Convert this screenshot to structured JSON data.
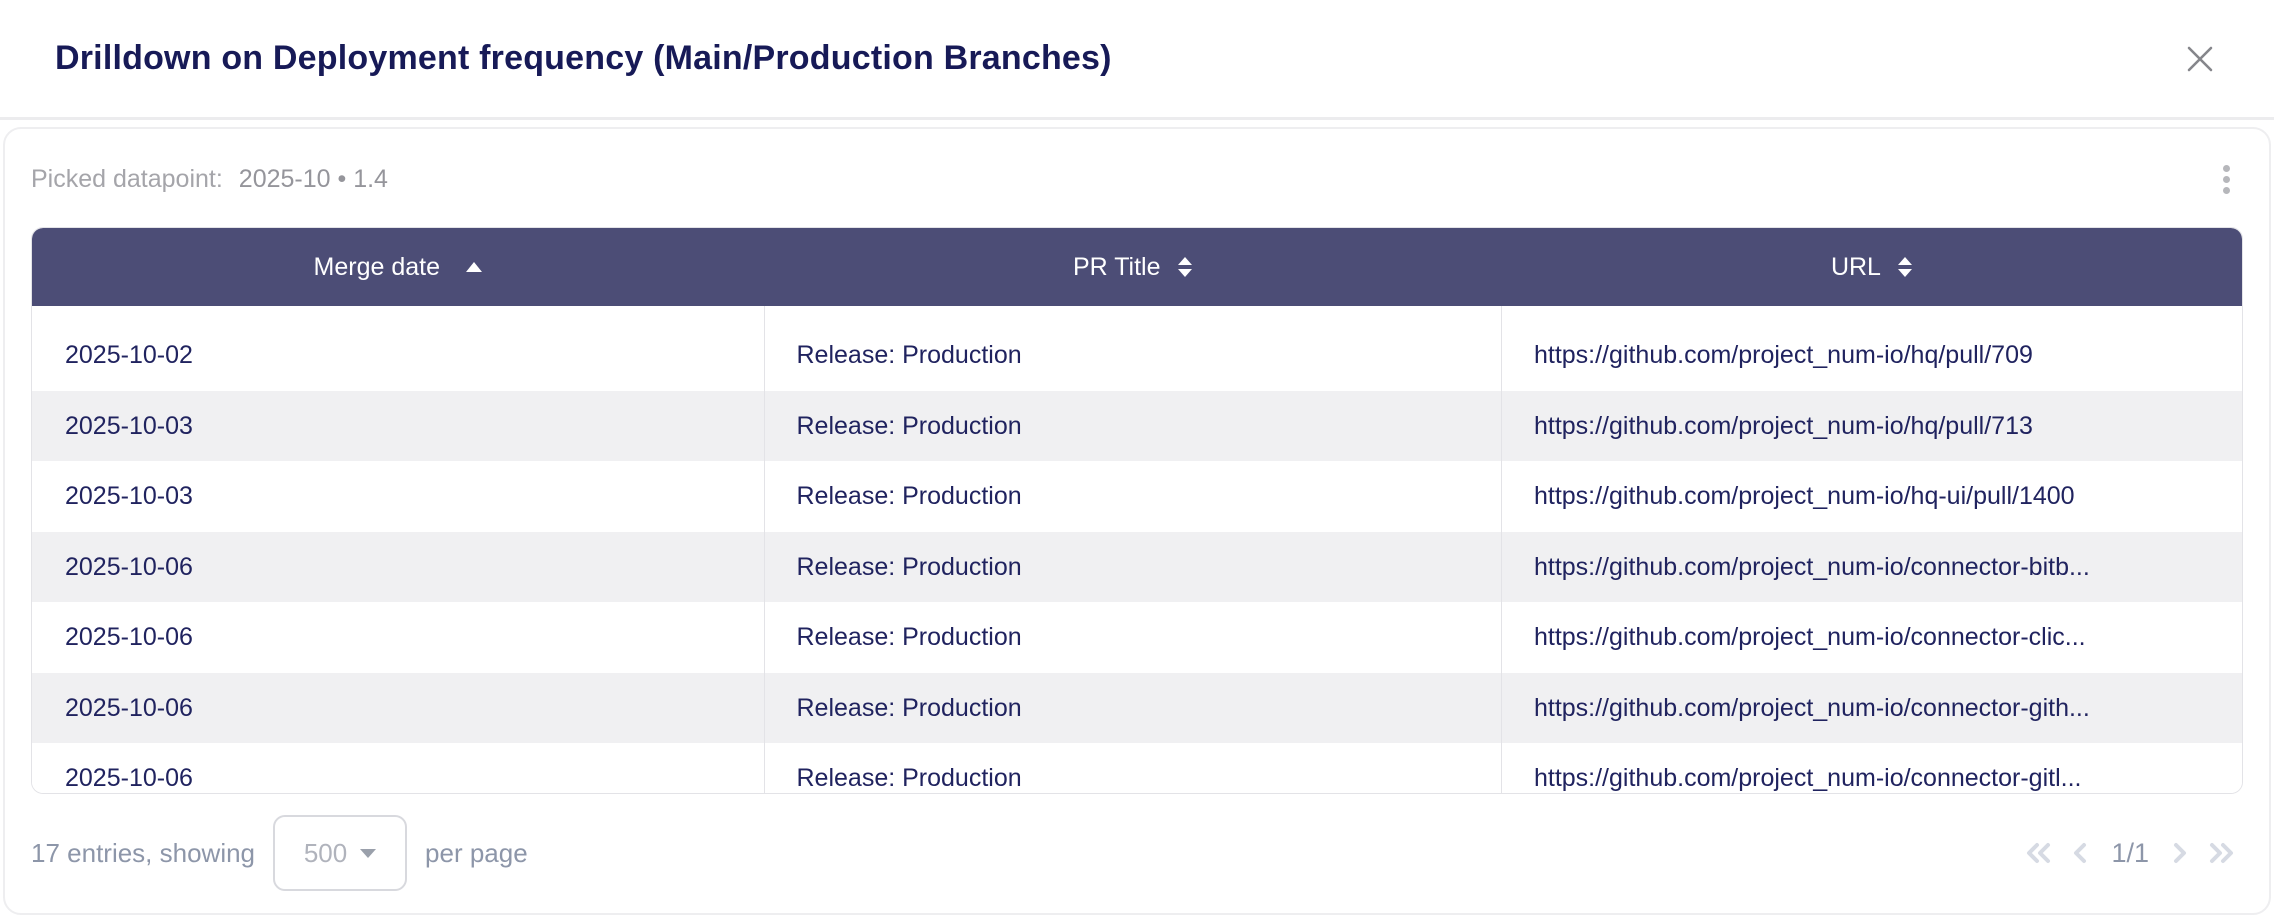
{
  "modal": {
    "title": "Drilldown on Deployment frequency (Main/Production Branches)"
  },
  "picked": {
    "label": "Picked datapoint:",
    "value": "2025-10 • 1.4"
  },
  "table": {
    "columns": [
      {
        "label": "Merge date",
        "sort": "asc"
      },
      {
        "label": "PR Title",
        "sort": "none"
      },
      {
        "label": "URL",
        "sort": "none"
      }
    ],
    "rows": [
      [
        "2025-10-02",
        "Release: Production",
        "https://github.com/project_num-io/hq/pull/709"
      ],
      [
        "2025-10-03",
        "Release: Production",
        "https://github.com/project_num-io/hq/pull/713"
      ],
      [
        "2025-10-03",
        "Release: Production",
        "https://github.com/project_num-io/hq-ui/pull/1400"
      ],
      [
        "2025-10-06",
        "Release: Production",
        "https://github.com/project_num-io/connector-bitb..."
      ],
      [
        "2025-10-06",
        "Release: Production",
        "https://github.com/project_num-io/connector-clic..."
      ],
      [
        "2025-10-06",
        "Release: Production",
        "https://github.com/project_num-io/connector-gith..."
      ],
      [
        "2025-10-06",
        "Release: Production",
        "https://github.com/project_num-io/connector-gitl..."
      ]
    ]
  },
  "footer": {
    "entries_text": "17 entries, showing",
    "page_size": "500",
    "per_page_text": "per page",
    "page_indicator": "1/1"
  },
  "icons": {
    "close": "close-icon",
    "kebab": "kebab-menu-icon",
    "sort_asc": "sort-ascending-icon",
    "sort_both": "sort-icon",
    "first_page": "double-chevron-left-icon",
    "prev_page": "chevron-left-icon",
    "next_page": "chevron-right-icon",
    "last_page": "double-chevron-right-icon",
    "dropdown_caret": "chevron-down-icon"
  },
  "colors": {
    "title-text": "#171a57",
    "header-bg": "#4c4d76",
    "header-text": "#ffffff",
    "cell-text": "#20235f",
    "stripe": "#f0f0f2",
    "divider": "#e3e3e7",
    "table-border": "#e3e3e7",
    "card-border": "#eeeef0",
    "header-divider": "#ececee",
    "muted-label": "#a5a5aa",
    "muted-value": "#95959b",
    "footer-text": "#8d96a9",
    "pager-chevron": "#d6dae3"
  }
}
